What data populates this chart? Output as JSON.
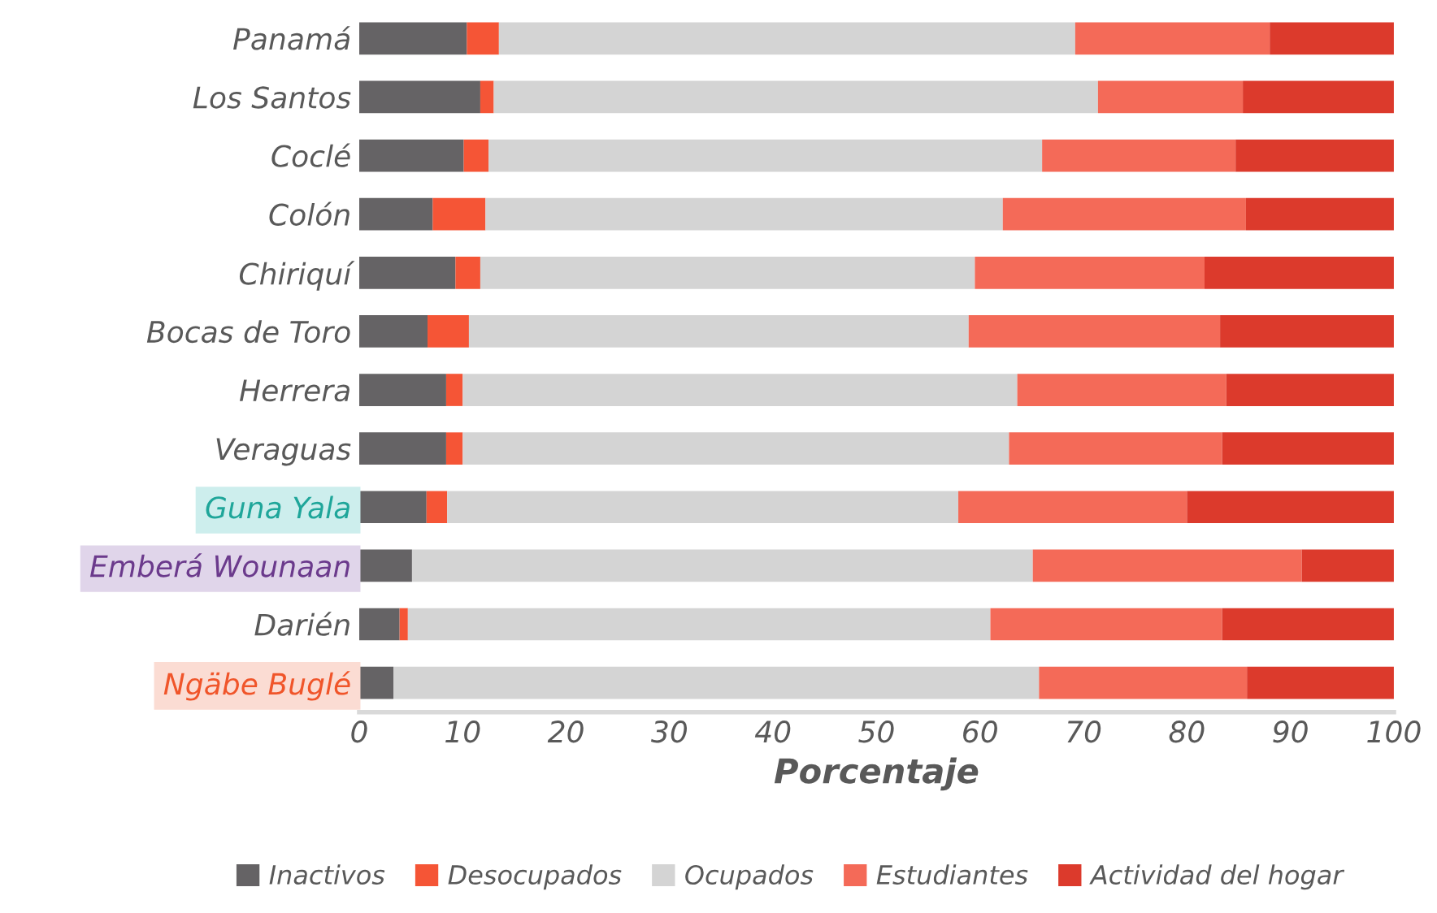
{
  "chart_data": {
    "type": "bar",
    "orientation": "horizontal",
    "stacked": true,
    "xlabel": "Porcentaje",
    "categories": [
      "Panamá",
      "Los Santos",
      "Coclé",
      "Colón",
      "Chiriquí",
      "Bocas de Toro",
      "Herrera",
      "Veraguas",
      "Guna Yala",
      "Emberá Wounaan",
      "Darién",
      "Ngäbe Buglé"
    ],
    "series": [
      {
        "name": "Inactivos",
        "color": "#656365",
        "values": [
          10.4,
          11.7,
          10.1,
          7.1,
          9.3,
          6.6,
          8.4,
          8.4,
          6.5,
          5.1,
          3.9,
          3.3
        ]
      },
      {
        "name": "Desocupados",
        "color": "#f55536",
        "values": [
          3.1,
          1.3,
          2.4,
          5.1,
          2.4,
          4.0,
          1.6,
          1.6,
          2.0,
          0,
          0.8,
          0
        ]
      },
      {
        "name": "Ocupados",
        "color": "#d4d4d4",
        "values": [
          55.7,
          58.4,
          53.5,
          50.0,
          47.8,
          48.3,
          53.6,
          52.8,
          49.4,
          60.0,
          56.3,
          62.4
        ]
      },
      {
        "name": "Estudiantes",
        "color": "#f46a58",
        "values": [
          18.8,
          14.0,
          18.7,
          23.5,
          22.2,
          24.3,
          20.2,
          20.6,
          22.1,
          26.0,
          22.4,
          20.1
        ]
      },
      {
        "name": "Actividad del hogar",
        "color": "#dc3a2c",
        "values": [
          12.0,
          14.6,
          15.3,
          14.3,
          18.3,
          16.8,
          16.2,
          16.6,
          20.0,
          8.9,
          16.6,
          14.2
        ]
      }
    ],
    "xlim": [
      0,
      100
    ],
    "xticks": [
      0,
      10,
      20,
      30,
      40,
      50,
      60,
      70,
      80,
      90,
      100
    ],
    "grid": false,
    "legend": "bottom"
  }
}
